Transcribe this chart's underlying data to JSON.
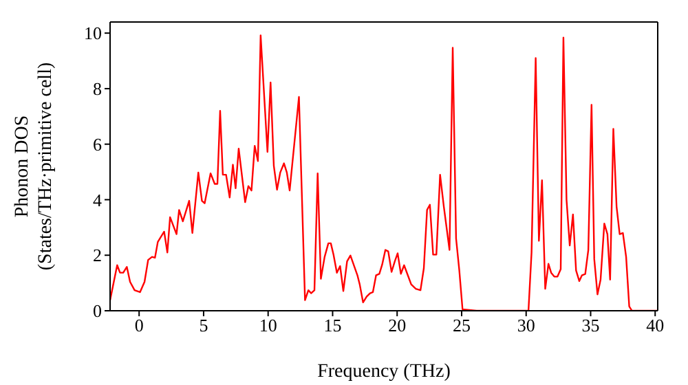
{
  "chart_data": {
    "type": "line",
    "xlabel": "Frequency (THz)",
    "ylabel": "Phonon DOS\n(States/THz·primitive cell)",
    "x": [
      -2.25,
      -1.7,
      -1.48,
      -1.23,
      -0.95,
      -0.7,
      -0.35,
      0.07,
      0.42,
      0.7,
      1.0,
      1.23,
      1.45,
      1.94,
      2.19,
      2.4,
      2.9,
      3.1,
      3.39,
      3.88,
      4.13,
      4.59,
      4.87,
      5.08,
      5.54,
      5.86,
      6.07,
      6.28,
      6.49,
      6.74,
      7.02,
      7.27,
      7.48,
      7.72,
      8.22,
      8.47,
      8.71,
      8.96,
      9.21,
      9.42,
      9.95,
      10.19,
      10.44,
      10.69,
      10.94,
      11.23,
      11.45,
      11.67,
      12.39,
      12.86,
      13.12,
      13.33,
      13.59,
      13.84,
      14.09,
      14.38,
      14.67,
      14.86,
      15.07,
      15.33,
      15.58,
      15.83,
      16.12,
      16.38,
      16.92,
      17.1,
      17.36,
      17.64,
      17.9,
      18.12,
      18.37,
      18.62,
      18.84,
      19.09,
      19.31,
      19.57,
      19.82,
      20.04,
      20.29,
      20.54,
      21.09,
      21.45,
      21.81,
      22.07,
      22.32,
      22.54,
      22.79,
      23.04,
      23.33,
      23.62,
      24.06,
      24.31,
      24.57,
      24.82,
      25.07,
      26.16,
      30.18,
      30.42,
      30.74,
      30.99,
      31.23,
      31.48,
      31.73,
      31.94,
      32.18,
      32.43,
      32.68,
      32.89,
      33.13,
      33.38,
      33.63,
      33.87,
      34.12,
      34.33,
      34.58,
      34.82,
      35.07,
      35.28,
      35.53,
      35.77,
      36.06,
      36.3,
      36.51,
      36.76,
      37.01,
      37.25,
      37.5,
      37.75,
      37.99,
      38.2,
      40.2
    ],
    "series": [
      {
        "color": "#ff0000",
        "values": [
          0.38,
          1.64,
          1.37,
          1.37,
          1.58,
          1.04,
          0.74,
          0.67,
          1.04,
          1.83,
          1.94,
          1.91,
          2.48,
          2.85,
          2.1,
          3.37,
          2.76,
          3.63,
          3.22,
          3.96,
          2.8,
          4.98,
          3.96,
          3.87,
          4.95,
          4.57,
          4.57,
          7.2,
          4.9,
          4.9,
          4.08,
          5.26,
          4.41,
          5.84,
          3.91,
          4.49,
          4.33,
          5.94,
          5.39,
          9.92,
          5.72,
          8.22,
          5.23,
          4.36,
          4.98,
          5.31,
          4.98,
          4.33,
          7.7,
          0.38,
          0.74,
          0.63,
          0.74,
          4.95,
          1.15,
          1.94,
          2.43,
          2.43,
          2.02,
          1.37,
          1.61,
          0.71,
          1.78,
          1.99,
          1.28,
          0.95,
          0.3,
          0.51,
          0.63,
          0.67,
          1.28,
          1.33,
          1.66,
          2.19,
          2.14,
          1.4,
          1.78,
          2.07,
          1.33,
          1.64,
          0.95,
          0.79,
          0.74,
          1.53,
          3.63,
          3.82,
          2.02,
          2.02,
          4.9,
          3.75,
          2.19,
          9.47,
          2.6,
          1.45,
          0.05,
          0,
          0,
          2.1,
          9.1,
          2.52,
          4.7,
          0.79,
          1.69,
          1.37,
          1.23,
          1.23,
          1.5,
          9.84,
          4.0,
          2.35,
          3.47,
          1.45,
          1.07,
          1.28,
          1.32,
          2.19,
          7.42,
          1.86,
          0.59,
          1.12,
          3.14,
          2.76,
          1.12,
          6.55,
          3.75,
          2.76,
          2.8,
          1.94,
          0.16,
          0,
          0
        ]
      }
    ],
    "xlim": [
      -2.25,
      40.2
    ],
    "xticks": [
      0,
      5,
      10,
      15,
      20,
      25,
      30,
      35,
      40
    ],
    "ylim": [
      0,
      10.4
    ],
    "yticks": [
      0,
      2,
      4,
      6,
      8,
      10
    ],
    "grid": false,
    "legend": false,
    "marker": "none",
    "line_style": "solid"
  }
}
